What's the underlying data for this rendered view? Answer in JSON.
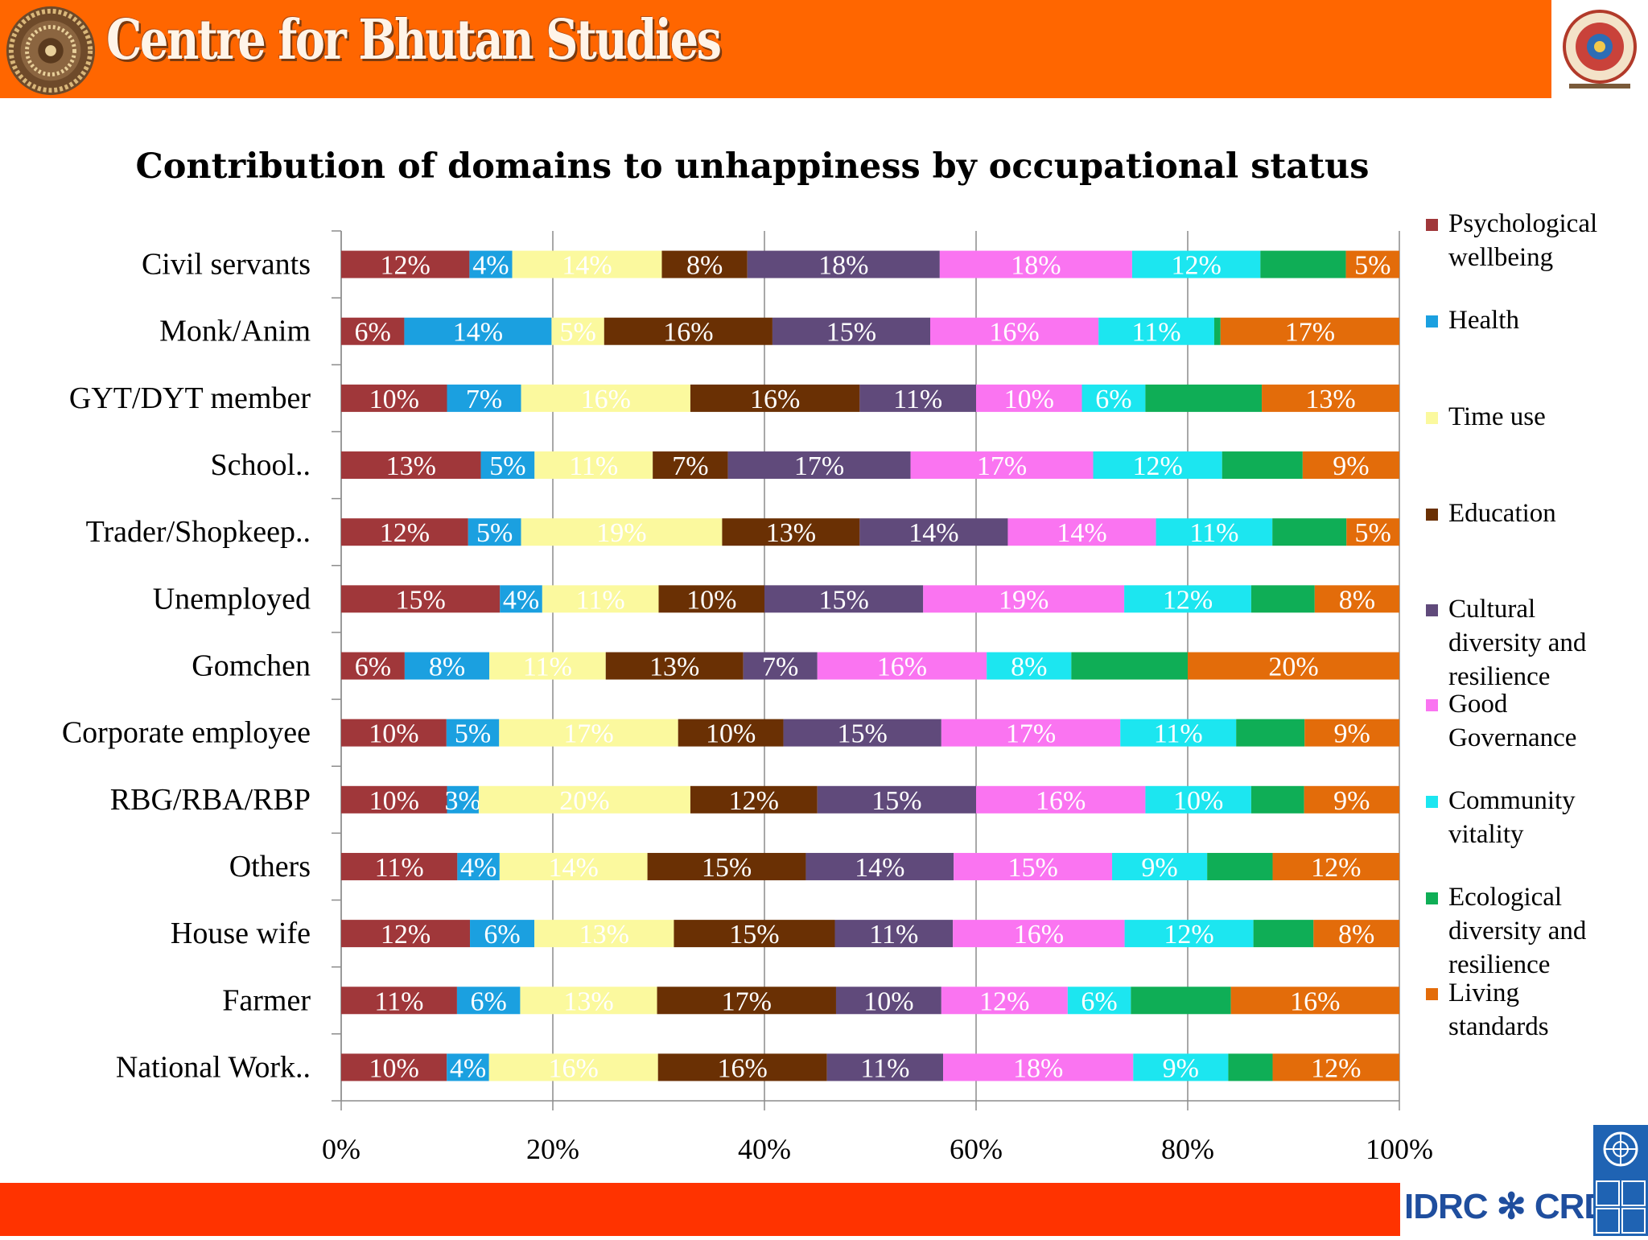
{
  "header": {
    "org_name": "Centre for Bhutan Studies",
    "bg_color": "#ff6600"
  },
  "footer": {
    "idrc_text": "IDRC ✻ CRDI",
    "bg_color": "#ff3300"
  },
  "chart_data": {
    "type": "bar",
    "orientation": "horizontal",
    "stacked": "percent",
    "title": "Contribution of domains to unhappiness by occupational status",
    "xlabel": "",
    "ylabel": "",
    "xlim": [
      0,
      100
    ],
    "x_ticks": [
      "0%",
      "20%",
      "40%",
      "60%",
      "80%",
      "100%"
    ],
    "grid": "vertical",
    "legend_position": "right",
    "categories": [
      "Civil servants",
      "Monk/Anim",
      "GYT/DYT member",
      "School..",
      "Trader/Shopkeep..",
      "Unemployed",
      "Gomchen",
      "Corporate employee",
      "RBG/RBA/RBP",
      "Others",
      "House wife",
      "Farmer",
      "National Work.."
    ],
    "series": [
      {
        "name": "Psychological wellbeing",
        "color": "#a0373a",
        "values": [
          12,
          6,
          10,
          13,
          12,
          15,
          6,
          10,
          10,
          11,
          12,
          11,
          10
        ],
        "labels": [
          "12%",
          "6%",
          "10%",
          "13%",
          "12%",
          "15%",
          "6%",
          "10%",
          "10%",
          "11%",
          "12%",
          "11%",
          "10%"
        ]
      },
      {
        "name": "Health",
        "color": "#1ba0e0",
        "values": [
          4,
          14,
          7,
          5,
          5,
          4,
          8,
          5,
          3,
          4,
          6,
          6,
          4
        ],
        "labels": [
          "4%",
          "14%",
          "7%",
          "5%",
          "5%",
          "4%",
          "8%",
          "5%",
          "3%",
          "4%",
          "6%",
          "6%",
          "4%"
        ]
      },
      {
        "name": "Time use",
        "color": "#fbf99e",
        "values": [
          14,
          5,
          16,
          11,
          19,
          11,
          11,
          17,
          20,
          14,
          13,
          13,
          16
        ],
        "labels": [
          "14%",
          "5%",
          "16%",
          "11%",
          "19%",
          "11%",
          "11%",
          "17%",
          "20%",
          "14%",
          "13%",
          "13%",
          "16%"
        ]
      },
      {
        "name": "Education",
        "color": "#6a3004",
        "values": [
          8,
          16,
          16,
          7,
          13,
          10,
          13,
          10,
          12,
          15,
          15,
          17,
          16
        ],
        "labels": [
          "8%",
          "16%",
          "16%",
          "7%",
          "13%",
          "10%",
          "13%",
          "10%",
          "12%",
          "15%",
          "15%",
          "17%",
          "16%"
        ]
      },
      {
        "name": "Cultural diversity and resilience",
        "color": "#604a7b",
        "values": [
          18,
          15,
          11,
          17,
          14,
          15,
          7,
          15,
          15,
          14,
          11,
          10,
          11
        ],
        "labels": [
          "18%",
          "15%",
          "11%",
          "17%",
          "14%",
          "15%",
          "7%",
          "15%",
          "15%",
          "14%",
          "11%",
          "10%",
          "11%"
        ]
      },
      {
        "name": "Good Governance",
        "color": "#fa74f1",
        "values": [
          18,
          16,
          10,
          17,
          14,
          19,
          16,
          17,
          16,
          15,
          16,
          12,
          18
        ],
        "labels": [
          "18%",
          "16%",
          "10%",
          "17%",
          "14%",
          "19%",
          "16%",
          "17%",
          "16%",
          "15%",
          "16%",
          "12%",
          "18%"
        ]
      },
      {
        "name": "Community vitality",
        "color": "#1ce6f0",
        "values": [
          12,
          11,
          6,
          12,
          11,
          12,
          8,
          11,
          10,
          9,
          12,
          6,
          9
        ],
        "labels": [
          "12%",
          "11%",
          "6%",
          "12%",
          "11%",
          "12%",
          "8%",
          "11%",
          "10%",
          "9%",
          "12%",
          "6%",
          "9%"
        ]
      },
      {
        "name": "Ecological diversity and resilience",
        "color": "#0fae56",
        "values": [
          8,
          0.6,
          11,
          7.5,
          7,
          6,
          11,
          6.5,
          5,
          6.2,
          5.6,
          9.5,
          4.2
        ],
        "labels": [
          "",
          "",
          "",
          "",
          "",
          "",
          "",
          "",
          "",
          "",
          "",
          "",
          ""
        ]
      },
      {
        "name": "Living standards",
        "color": "#e36c0a",
        "values": [
          5,
          17,
          13,
          9,
          5,
          8,
          20,
          9,
          9,
          12,
          8,
          16,
          12
        ],
        "labels": [
          "5%",
          "17%",
          "13%",
          "9%",
          "5%",
          "8%",
          "20%",
          "9%",
          "9%",
          "12%",
          "8%",
          "16%",
          "12%"
        ]
      }
    ]
  }
}
